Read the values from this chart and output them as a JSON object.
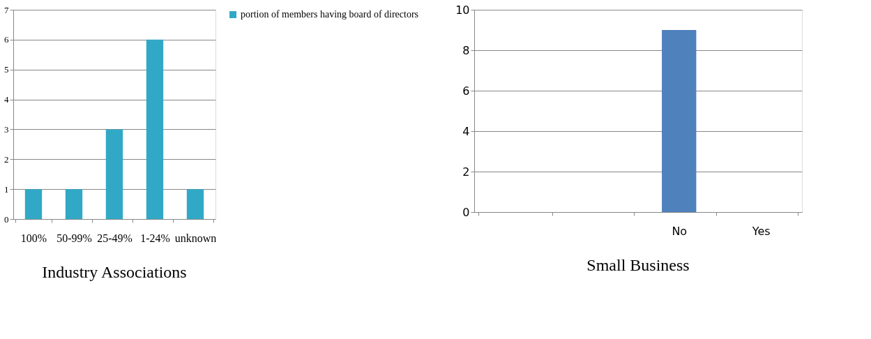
{
  "chart_data": [
    {
      "type": "bar",
      "title": "Industry Associations",
      "categories": [
        "100%",
        "50-99%",
        "25-49%",
        "1-24%",
        "unknown"
      ],
      "series": [
        {
          "name": "portion of members having board of directors",
          "color": "#31a9c6",
          "values": [
            1,
            1,
            3,
            6,
            1
          ]
        }
      ],
      "ylim": [
        0,
        7
      ],
      "yticks": [
        0,
        1,
        2,
        3,
        4,
        5,
        6,
        7
      ],
      "grid": "y",
      "legend": "right"
    },
    {
      "type": "bar",
      "title": "Small Business",
      "categories": [
        null,
        null,
        "No",
        "Yes"
      ],
      "series": [
        {
          "color": "#4f81bd",
          "values": [
            null,
            null,
            9,
            null
          ]
        }
      ],
      "ylim": [
        0,
        10
      ],
      "yticks": [
        0,
        2,
        4,
        6,
        8,
        10
      ],
      "grid": "y",
      "legend": false
    }
  ]
}
